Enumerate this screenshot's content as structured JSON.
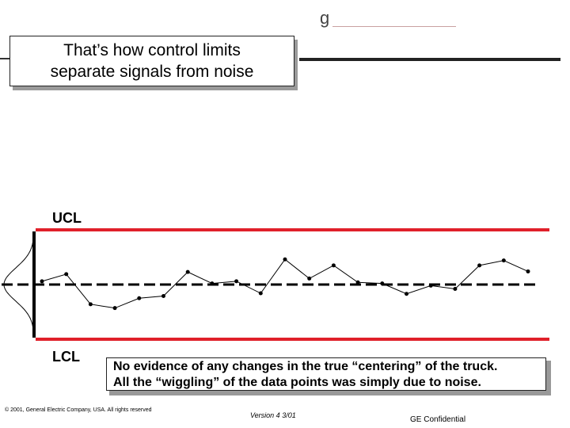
{
  "logo": {
    "glyph": "g"
  },
  "title": "That’s how control limits\nseparate signals from noise",
  "limits": {
    "upper": "UCL",
    "lower": "LCL"
  },
  "note": "No evidence of any changes in the true “centering” of the truck.\nAll the “wiggling” of the data points was simply due to noise.",
  "footer": {
    "copyright": "© 2001, General Electric Company, USA.  All rights reserved",
    "version": "Version 4  3/01",
    "confidential": "GE Confidential"
  },
  "colors": {
    "limit_line": "#e0202a",
    "center_line": "#000000",
    "data_line": "#000000"
  },
  "chart_data": {
    "type": "line",
    "title": "",
    "xlabel": "",
    "ylabel": "",
    "ylim": [
      -1,
      1
    ],
    "limits": {
      "UCL": 1,
      "LCL": -1,
      "center": 0
    },
    "series": [
      {
        "values": [
          0.06,
          0.19,
          -0.36,
          -0.43,
          -0.25,
          -0.21,
          0.23,
          0.02,
          0.06,
          -0.16,
          0.46,
          0.11,
          0.35,
          0.04,
          0.02,
          -0.17,
          -0.02,
          -0.08,
          0.35,
          0.44,
          0.24
        ]
      }
    ]
  }
}
